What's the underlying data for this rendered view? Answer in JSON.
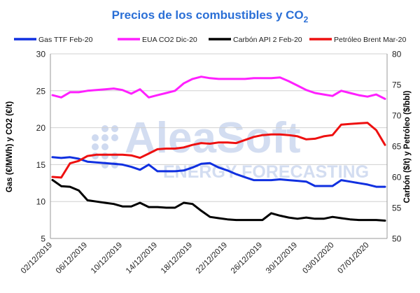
{
  "chart_data": {
    "type": "line",
    "title": {
      "main": "Precios de los combustibles y CO",
      "sub": "2"
    },
    "y_left_label": "Gas (€/MWh) y CO2 (€/t)",
    "y_right_label": "Carbón ($/t) y Petróleo ($/bbl)",
    "ylim_left": [
      5,
      30
    ],
    "ylim_right": [
      50,
      80
    ],
    "y_left_ticks": [
      5,
      10,
      15,
      20,
      25,
      30
    ],
    "y_right_ticks": [
      50,
      55,
      60,
      65,
      70,
      75,
      80
    ],
    "x_labels": [
      "02/12/2019",
      "06/12/2019",
      "10/12/2019",
      "14/12/2019",
      "18/12/2019",
      "22/12/2019",
      "26/12/2019",
      "30/12/2019",
      "03/01/2020",
      "07/01/2020"
    ],
    "legend_position": "top",
    "grid": true,
    "watermark": {
      "line1": "AleaSoft",
      "line2": "ENERGY FORECASTING"
    },
    "series": [
      {
        "name": "Gas TTF Feb-20",
        "axis": "left",
        "color": "#1030e0",
        "points": [
          [
            0,
            16.0
          ],
          [
            1,
            15.9
          ],
          [
            2,
            16.0
          ],
          [
            3,
            15.8
          ],
          [
            4,
            15.4
          ],
          [
            5,
            15.3
          ],
          [
            6,
            15.2
          ],
          [
            7,
            15.1
          ],
          [
            8,
            15.0
          ],
          [
            9,
            14.7
          ],
          [
            10,
            14.3
          ],
          [
            11,
            15.0
          ],
          [
            12,
            14.1
          ],
          [
            13,
            14.1
          ],
          [
            14,
            14.1
          ],
          [
            15,
            14.2
          ],
          [
            16,
            14.6
          ],
          [
            17,
            15.1
          ],
          [
            18,
            15.2
          ],
          [
            19,
            14.6
          ],
          [
            20,
            14.2
          ],
          [
            21,
            13.7
          ],
          [
            22,
            13.3
          ],
          [
            23,
            12.9
          ],
          [
            24,
            12.9
          ],
          [
            25,
            12.9
          ],
          [
            26,
            13.0
          ],
          [
            27,
            12.9
          ],
          [
            28,
            12.8
          ],
          [
            29,
            12.7
          ],
          [
            30,
            12.1
          ],
          [
            31,
            12.1
          ],
          [
            32,
            12.1
          ],
          [
            33,
            12.9
          ],
          [
            34,
            12.7
          ],
          [
            35,
            12.5
          ],
          [
            36,
            12.3
          ],
          [
            37,
            12.0
          ],
          [
            38,
            12.0
          ]
        ]
      },
      {
        "name": "EUA CO2 Dic-20",
        "axis": "left",
        "color": "#ff20ff",
        "points": [
          [
            0,
            24.4
          ],
          [
            1,
            24.1
          ],
          [
            2,
            24.8
          ],
          [
            3,
            24.8
          ],
          [
            4,
            25.0
          ],
          [
            5,
            25.1
          ],
          [
            6,
            25.2
          ],
          [
            7,
            25.3
          ],
          [
            8,
            25.1
          ],
          [
            9,
            24.6
          ],
          [
            10,
            25.2
          ],
          [
            11,
            24.1
          ],
          [
            12,
            24.4
          ],
          [
            13,
            24.7
          ],
          [
            14,
            25.0
          ],
          [
            15,
            26.0
          ],
          [
            16,
            26.6
          ],
          [
            17,
            26.9
          ],
          [
            18,
            26.7
          ],
          [
            19,
            26.6
          ],
          [
            20,
            26.6
          ],
          [
            21,
            26.6
          ],
          [
            22,
            26.6
          ],
          [
            23,
            26.7
          ],
          [
            24,
            26.7
          ],
          [
            25,
            26.7
          ],
          [
            26,
            26.8
          ],
          [
            27,
            26.3
          ],
          [
            28,
            25.7
          ],
          [
            29,
            25.1
          ],
          [
            30,
            24.7
          ],
          [
            31,
            24.5
          ],
          [
            32,
            24.3
          ],
          [
            33,
            25.0
          ],
          [
            34,
            24.7
          ],
          [
            35,
            24.4
          ],
          [
            36,
            24.2
          ],
          [
            37,
            24.5
          ],
          [
            38,
            23.9
          ]
        ]
      },
      {
        "name": "Carbón API 2 Feb-20",
        "axis": "right",
        "color": "#000000",
        "points": [
          [
            0,
            59.5
          ],
          [
            1,
            58.5
          ],
          [
            2,
            58.4
          ],
          [
            3,
            57.8
          ],
          [
            4,
            56.2
          ],
          [
            5,
            56.0
          ],
          [
            6,
            55.8
          ],
          [
            7,
            55.6
          ],
          [
            8,
            55.2
          ],
          [
            9,
            55.2
          ],
          [
            10,
            55.8
          ],
          [
            11,
            55.1
          ],
          [
            12,
            55.1
          ],
          [
            13,
            55.0
          ],
          [
            14,
            55.0
          ],
          [
            15,
            55.8
          ],
          [
            16,
            55.6
          ],
          [
            17,
            54.5
          ],
          [
            18,
            53.5
          ],
          [
            19,
            53.3
          ],
          [
            20,
            53.1
          ],
          [
            21,
            53.0
          ],
          [
            22,
            53.0
          ],
          [
            23,
            53.0
          ],
          [
            24,
            53.0
          ],
          [
            25,
            54.1
          ],
          [
            26,
            53.7
          ],
          [
            27,
            53.4
          ],
          [
            28,
            53.2
          ],
          [
            29,
            53.4
          ],
          [
            30,
            53.2
          ],
          [
            31,
            53.2
          ],
          [
            32,
            53.5
          ],
          [
            33,
            53.3
          ],
          [
            34,
            53.1
          ],
          [
            35,
            53.0
          ],
          [
            36,
            53.0
          ],
          [
            37,
            53.0
          ],
          [
            38,
            52.9
          ]
        ]
      },
      {
        "name": "Petróleo Brent Mar-20",
        "axis": "right",
        "color": "#ee1010",
        "points": [
          [
            0,
            60.0
          ],
          [
            1,
            59.9
          ],
          [
            2,
            62.2
          ],
          [
            3,
            62.6
          ],
          [
            4,
            63.4
          ],
          [
            5,
            63.6
          ],
          [
            6,
            63.6
          ],
          [
            7,
            63.6
          ],
          [
            8,
            63.6
          ],
          [
            9,
            63.5
          ],
          [
            10,
            63.1
          ],
          [
            11,
            63.8
          ],
          [
            12,
            64.5
          ],
          [
            13,
            64.6
          ],
          [
            14,
            64.6
          ],
          [
            15,
            64.8
          ],
          [
            16,
            65.2
          ],
          [
            17,
            65.5
          ],
          [
            18,
            65.4
          ],
          [
            19,
            65.6
          ],
          [
            20,
            65.6
          ],
          [
            21,
            65.5
          ],
          [
            22,
            66.0
          ],
          [
            23,
            66.5
          ],
          [
            24,
            66.8
          ],
          [
            25,
            66.9
          ],
          [
            26,
            66.9
          ],
          [
            27,
            66.8
          ],
          [
            28,
            66.6
          ],
          [
            29,
            66.1
          ],
          [
            30,
            66.2
          ],
          [
            31,
            66.6
          ],
          [
            32,
            66.8
          ],
          [
            33,
            68.5
          ],
          [
            34,
            68.6
          ],
          [
            35,
            68.7
          ],
          [
            36,
            68.8
          ],
          [
            37,
            67.6
          ],
          [
            38,
            65.2
          ]
        ]
      }
    ]
  }
}
